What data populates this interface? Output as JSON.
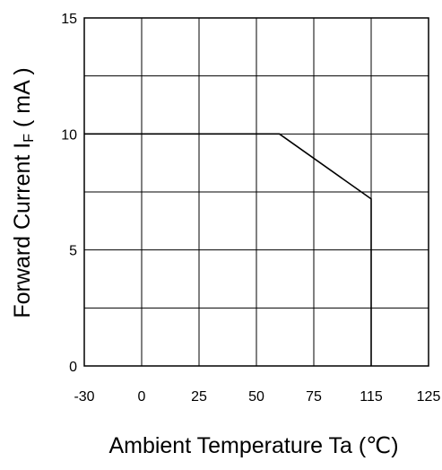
{
  "chart_data": {
    "type": "line",
    "title": "",
    "xlabel": "Ambient Temperature Ta (℃)",
    "ylabel_main": "Forward Current I",
    "ylabel_sub": "F",
    "ylabel_unit": " ( mA )",
    "x_ticks": [
      "-30",
      "0",
      "25",
      "50",
      "75",
      "115",
      "125"
    ],
    "y_ticks": [
      "0",
      "5",
      "10",
      "15"
    ],
    "y_tick_values": [
      0,
      5,
      10,
      15
    ],
    "ylim": [
      0,
      15
    ],
    "grid": true,
    "series": [
      {
        "points": [
          {
            "x": "-30",
            "y": 10
          },
          {
            "x": "60",
            "y": 10
          },
          {
            "x": "115",
            "y": 7.2
          },
          {
            "x": "115",
            "y": 0
          }
        ]
      }
    ]
  }
}
